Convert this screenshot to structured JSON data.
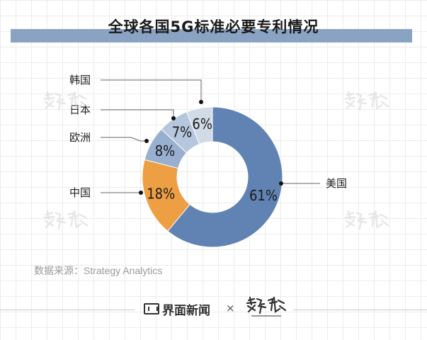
{
  "title": "全球各国5G标准必要专利情况",
  "source": "数据来源：Strategy Analytics",
  "footer": {
    "brand_a": "界面新闻",
    "separator": "×"
  },
  "chart_data": {
    "type": "pie",
    "donut": true,
    "title": "全球各国5G标准必要专利情况",
    "slices": [
      {
        "label": "美国",
        "value": 61,
        "display": "61%",
        "color": "#6183b4"
      },
      {
        "label": "中国",
        "value": 18,
        "display": "18%",
        "color": "#ee9e43"
      },
      {
        "label": "欧洲",
        "value": 8,
        "display": "8%",
        "color": "#98afcf"
      },
      {
        "label": "日本",
        "value": 7,
        "display": "7%",
        "color": "#b6c6dd"
      },
      {
        "label": "韩国",
        "value": 6,
        "display": "6%",
        "color": "#d1dbe8"
      }
    ]
  }
}
